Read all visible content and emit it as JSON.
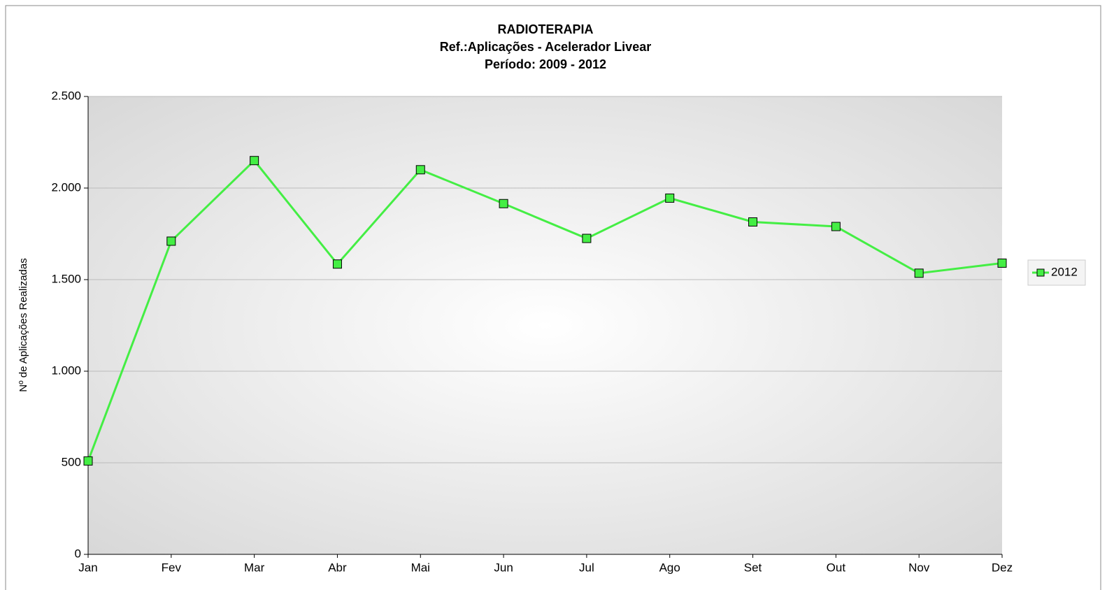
{
  "chart_data": {
    "type": "line",
    "title": "RADIOTERAPIA",
    "subtitle": [
      "Ref.:Aplicações - Acelerador Livear",
      "Período: 2009 - 2012"
    ],
    "ylabel": "Nº de Aplicações Realizadas",
    "categories": [
      "Jan",
      "Fev",
      "Mar",
      "Abr",
      "Mai",
      "Jun",
      "Jul",
      "Ago",
      "Set",
      "Out",
      "Nov",
      "Dez"
    ],
    "series": [
      {
        "name": "2012",
        "color": "#44ee44",
        "values": [
          510,
          1710,
          2150,
          1585,
          2100,
          1915,
          1725,
          1945,
          1815,
          1790,
          1535,
          1590
        ]
      }
    ],
    "ylim": [
      0,
      2500
    ],
    "yticks": [
      0,
      500,
      {
        "value": 1000,
        "label": "1.000"
      },
      {
        "value": 1500,
        "label": "1.500"
      },
      {
        "value": 2000,
        "label": "2.000"
      },
      {
        "value": 2500,
        "label": "2.500"
      }
    ],
    "grid": true,
    "legend": "right"
  }
}
